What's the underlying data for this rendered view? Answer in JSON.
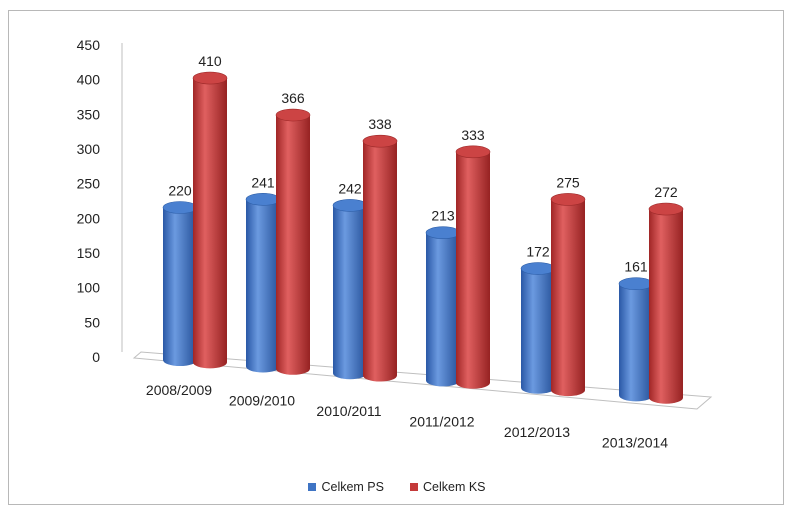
{
  "chart_data": {
    "type": "bar",
    "categories": [
      "2008/2009",
      "2009/2010",
      "2010/2011",
      "2011/2012",
      "2012/2013",
      "2013/2014"
    ],
    "series": [
      {
        "name": "Celkem PS",
        "values": [
          220,
          241,
          242,
          213,
          172,
          161
        ],
        "color": "#3f74c4"
      },
      {
        "name": "Celkem KS",
        "values": [
          410,
          366,
          338,
          333,
          275,
          272
        ],
        "color": "#c43a3a"
      }
    ],
    "y_ticks": [
      "0",
      "50",
      "100",
      "150",
      "200",
      "250",
      "300",
      "350",
      "400",
      "450"
    ],
    "ylim": [
      0,
      450
    ],
    "style": "3d-cylinder",
    "data_labels": true,
    "legend_position": "bottom"
  }
}
